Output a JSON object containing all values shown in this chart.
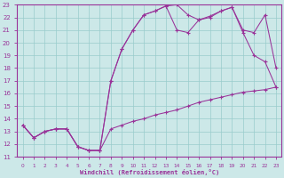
{
  "xlabel": "Windchill (Refroidissement éolien,°C)",
  "bg_color": "#cce8e8",
  "line_color": "#993399",
  "grid_color": "#99cccc",
  "xlim_min": -0.5,
  "xlim_max": 23.5,
  "ylim_min": 11,
  "ylim_max": 23,
  "xticks": [
    0,
    1,
    2,
    3,
    4,
    5,
    6,
    7,
    8,
    9,
    10,
    11,
    12,
    13,
    14,
    15,
    16,
    17,
    18,
    19,
    20,
    21,
    22,
    23
  ],
  "yticks": [
    11,
    12,
    13,
    14,
    15,
    16,
    17,
    18,
    19,
    20,
    21,
    22,
    23
  ],
  "line1_x": [
    0,
    1,
    2,
    3,
    4,
    5,
    6,
    7,
    8,
    9,
    10,
    11,
    12,
    13,
    14,
    15,
    16,
    17,
    18,
    19,
    20,
    21,
    22,
    23
  ],
  "line1_y": [
    13.5,
    12.5,
    13.0,
    13.2,
    13.2,
    11.8,
    11.5,
    11.5,
    13.2,
    13.5,
    13.8,
    14.0,
    14.3,
    14.5,
    14.7,
    15.0,
    15.3,
    15.5,
    15.7,
    15.9,
    16.1,
    16.2,
    16.3,
    16.5
  ],
  "line2_x": [
    0,
    1,
    2,
    3,
    4,
    5,
    6,
    7,
    8,
    9,
    10,
    11,
    12,
    13,
    14,
    15,
    16,
    17,
    18,
    19,
    20,
    21,
    22,
    23
  ],
  "line2_y": [
    13.5,
    12.5,
    13.0,
    13.2,
    13.2,
    11.8,
    11.5,
    11.5,
    17.0,
    19.5,
    21.0,
    22.2,
    22.5,
    22.9,
    21.0,
    20.8,
    21.8,
    22.1,
    22.5,
    22.8,
    20.8,
    19.0,
    18.5,
    16.5
  ],
  "line3_x": [
    0,
    1,
    2,
    3,
    4,
    5,
    6,
    7,
    8,
    9,
    10,
    11,
    12,
    13,
    14,
    15,
    16,
    17,
    18,
    19,
    20,
    21,
    22,
    23
  ],
  "line3_y": [
    13.5,
    12.5,
    13.0,
    13.2,
    13.2,
    11.8,
    11.5,
    11.5,
    17.0,
    19.5,
    21.0,
    22.2,
    22.5,
    22.9,
    23.0,
    22.2,
    21.8,
    22.0,
    22.5,
    22.8,
    21.0,
    20.8,
    22.2,
    18.0
  ]
}
